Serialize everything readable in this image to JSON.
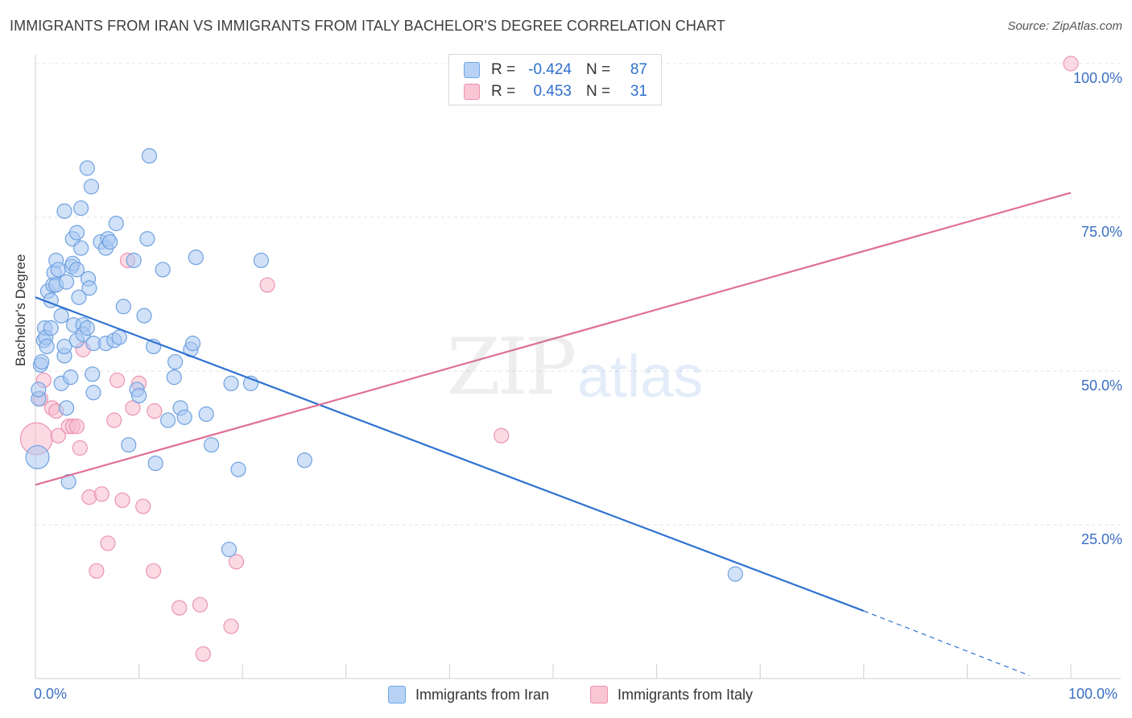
{
  "title": "IMMIGRANTS FROM IRAN VS IMMIGRANTS FROM ITALY BACHELOR'S DEGREE CORRELATION CHART",
  "source": "Source: ZipAtlas.com",
  "watermark": {
    "zip": "ZIP",
    "atlas": "atlas"
  },
  "legend": {
    "iran": {
      "r_label": "R =",
      "r_value": "-0.424",
      "n_label": "N =",
      "n_value": "87",
      "color": "#6fa8e8"
    },
    "italy": {
      "r_label": "R =",
      "r_value": "0.453",
      "n_label": "N =",
      "n_value": "31",
      "color": "#f08fac"
    }
  },
  "bottom_legend": {
    "iran": "Immigrants from Iran",
    "italy": "Immigrants from Italy"
  },
  "colors": {
    "iran_fill": "#a9c9f2",
    "iran_stroke": "#6fa2e0",
    "iran_line": "#2f72d1",
    "italy_fill": "#f7bccd",
    "italy_stroke": "#ec94b0",
    "italy_line": "#e07096",
    "grid": "#e3e3e3",
    "tick_text": "#3a6fc4"
  },
  "chart_data": {
    "type": "scatter",
    "title": "IMMIGRANTS FROM IRAN VS IMMIGRANTS FROM ITALY BACHELOR'S DEGREE CORRELATION CHART",
    "xlabel": "",
    "ylabel": "Bachelor's Degree",
    "xlim": [
      0,
      100
    ],
    "ylim": [
      0,
      100
    ],
    "x_tick_labels": [
      "0.0%",
      "100.0%"
    ],
    "y_tick_labels": [
      {
        "value": 100,
        "label": "100.0%"
      },
      {
        "value": 75,
        "label": "75.0%"
      },
      {
        "value": 50,
        "label": "50.0%"
      },
      {
        "value": 25,
        "label": "25.0%"
      }
    ],
    "series": [
      {
        "name": "Immigrants from Iran",
        "r": -0.424,
        "n": 87,
        "trend": {
          "x0": 0,
          "y0": 62,
          "x1": 80,
          "y1": 11,
          "dash_to_x": 96,
          "dash_to_y": 0.5
        },
        "points": [
          [
            0.2,
            36,
            1.6
          ],
          [
            0.3,
            45.5,
            1
          ],
          [
            0.3,
            47,
            1
          ],
          [
            0.5,
            51,
            1
          ],
          [
            0.6,
            51.5,
            1
          ],
          [
            0.8,
            55,
            1
          ],
          [
            0.9,
            57,
            1
          ],
          [
            1,
            55.5,
            1
          ],
          [
            1.1,
            54,
            1
          ],
          [
            1.2,
            63,
            1
          ],
          [
            1.5,
            61.5,
            1
          ],
          [
            1.5,
            57,
            1
          ],
          [
            1.7,
            64,
            1
          ],
          [
            1.8,
            66,
            1
          ],
          [
            2,
            64,
            1
          ],
          [
            2,
            68,
            1
          ],
          [
            2.2,
            66.5,
            1
          ],
          [
            2.5,
            59,
            1
          ],
          [
            2.5,
            48,
            1
          ],
          [
            2.8,
            52.5,
            1
          ],
          [
            2.8,
            54,
            1
          ],
          [
            2.8,
            76,
            1
          ],
          [
            3,
            64.5,
            1
          ],
          [
            3,
            44,
            1
          ],
          [
            3.2,
            32,
            1
          ],
          [
            3.4,
            49,
            1
          ],
          [
            3.5,
            67,
            1
          ],
          [
            3.6,
            67.5,
            1
          ],
          [
            3.6,
            71.5,
            1
          ],
          [
            3.7,
            57.5,
            1
          ],
          [
            4,
            55,
            1
          ],
          [
            4,
            72.5,
            1
          ],
          [
            4,
            66.5,
            1
          ],
          [
            4.2,
            62,
            1
          ],
          [
            4.4,
            70,
            1
          ],
          [
            4.4,
            76.5,
            1
          ],
          [
            4.6,
            57.5,
            1
          ],
          [
            4.6,
            56,
            1
          ],
          [
            5,
            57,
            1
          ],
          [
            5,
            83,
            1
          ],
          [
            5.1,
            65,
            1
          ],
          [
            5.2,
            63.5,
            1
          ],
          [
            5.4,
            80,
            1
          ],
          [
            5.5,
            49.5,
            1
          ],
          [
            5.6,
            46.5,
            1
          ],
          [
            5.6,
            54.5,
            1
          ],
          [
            6.3,
            71,
            1
          ],
          [
            6.8,
            70,
            1
          ],
          [
            6.8,
            54.5,
            1
          ],
          [
            7,
            71.5,
            1
          ],
          [
            7.2,
            71,
            1
          ],
          [
            7.6,
            55,
            1
          ],
          [
            7.8,
            74,
            1
          ],
          [
            8.1,
            55.5,
            1
          ],
          [
            8.5,
            60.5,
            1
          ],
          [
            9,
            38,
            1
          ],
          [
            9.5,
            68,
            1
          ],
          [
            9.8,
            47,
            1
          ],
          [
            10,
            46,
            1
          ],
          [
            10.5,
            59,
            1
          ],
          [
            10.8,
            71.5,
            1
          ],
          [
            11,
            85,
            1
          ],
          [
            11.4,
            54,
            1
          ],
          [
            11.6,
            35,
            1
          ],
          [
            12.3,
            66.5,
            1
          ],
          [
            12.8,
            42,
            1
          ],
          [
            13.4,
            49,
            1
          ],
          [
            13.5,
            51.5,
            1
          ],
          [
            14,
            44,
            1
          ],
          [
            14.4,
            42.5,
            1
          ],
          [
            15,
            53.5,
            1
          ],
          [
            15.2,
            54.5,
            1
          ],
          [
            15.5,
            68.5,
            1
          ],
          [
            16.5,
            43,
            1
          ],
          [
            17,
            38,
            1
          ],
          [
            18.7,
            21,
            1
          ],
          [
            18.9,
            48,
            1
          ],
          [
            19.6,
            34,
            1
          ],
          [
            20.8,
            48,
            1
          ],
          [
            21.8,
            68,
            1
          ],
          [
            26,
            35.5,
            1
          ],
          [
            67.6,
            17,
            1
          ]
        ]
      },
      {
        "name": "Immigrants from Italy",
        "r": 0.453,
        "n": 31,
        "trend": {
          "x0": 0,
          "y0": 31.5,
          "x1": 100,
          "y1": 79
        },
        "points": [
          [
            0.1,
            39,
            2.2
          ],
          [
            0.5,
            45.5,
            1
          ],
          [
            0.8,
            48.5,
            1
          ],
          [
            1.6,
            44,
            1
          ],
          [
            2,
            43.5,
            1
          ],
          [
            2.2,
            39.5,
            1
          ],
          [
            3.2,
            41,
            1
          ],
          [
            3.6,
            41,
            1
          ],
          [
            4,
            41,
            1
          ],
          [
            4.3,
            37.5,
            1
          ],
          [
            4.6,
            53.5,
            1
          ],
          [
            5.2,
            29.5,
            1
          ],
          [
            5.9,
            17.5,
            1
          ],
          [
            6.4,
            30,
            1
          ],
          [
            7.0,
            22,
            1
          ],
          [
            7.6,
            42,
            1
          ],
          [
            7.9,
            48.5,
            1
          ],
          [
            8.4,
            29,
            1
          ],
          [
            8.9,
            68,
            1
          ],
          [
            9.4,
            44,
            1
          ],
          [
            10.0,
            48,
            1
          ],
          [
            10.4,
            28,
            1
          ],
          [
            11.4,
            17.5,
            1
          ],
          [
            11.5,
            43.5,
            1
          ],
          [
            13.9,
            11.5,
            1
          ],
          [
            15.9,
            12,
            1
          ],
          [
            16.2,
            4,
            1
          ],
          [
            18.9,
            8.5,
            1
          ],
          [
            19.4,
            19,
            1
          ],
          [
            22.4,
            64,
            1
          ],
          [
            45,
            39.5,
            1
          ],
          [
            100,
            100,
            1
          ]
        ]
      }
    ]
  }
}
